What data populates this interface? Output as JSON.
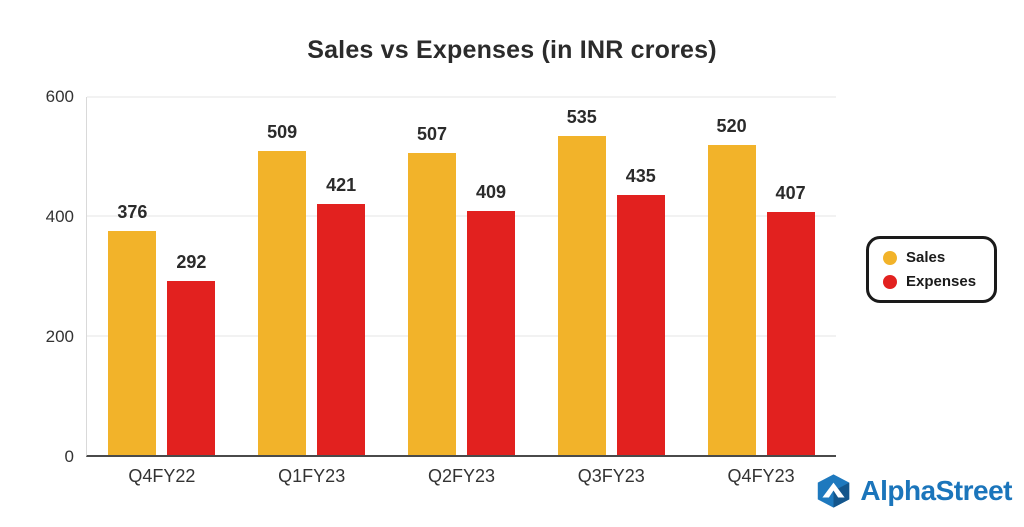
{
  "chart_data": {
    "type": "bar",
    "title": "Sales vs Expenses (in INR crores)",
    "categories": [
      "Q4FY22",
      "Q1FY23",
      "Q2FY23",
      "Q3FY23",
      "Q4FY23"
    ],
    "series": [
      {
        "name": "Sales",
        "color": "#F2B32A",
        "values": [
          376,
          509,
          507,
          535,
          520
        ]
      },
      {
        "name": "Expenses",
        "color": "#E2211F",
        "values": [
          292,
          421,
          409,
          435,
          407
        ]
      }
    ],
    "xlabel": "",
    "ylabel": "",
    "ylim": [
      0,
      600
    ],
    "yticks": [
      0,
      200,
      400,
      600
    ],
    "grid": true,
    "legend_position": "right"
  },
  "branding": {
    "name": "AlphaStreet",
    "color": "#1B75BB",
    "logo_icon": "alphastreet-hexagon-chevron"
  }
}
